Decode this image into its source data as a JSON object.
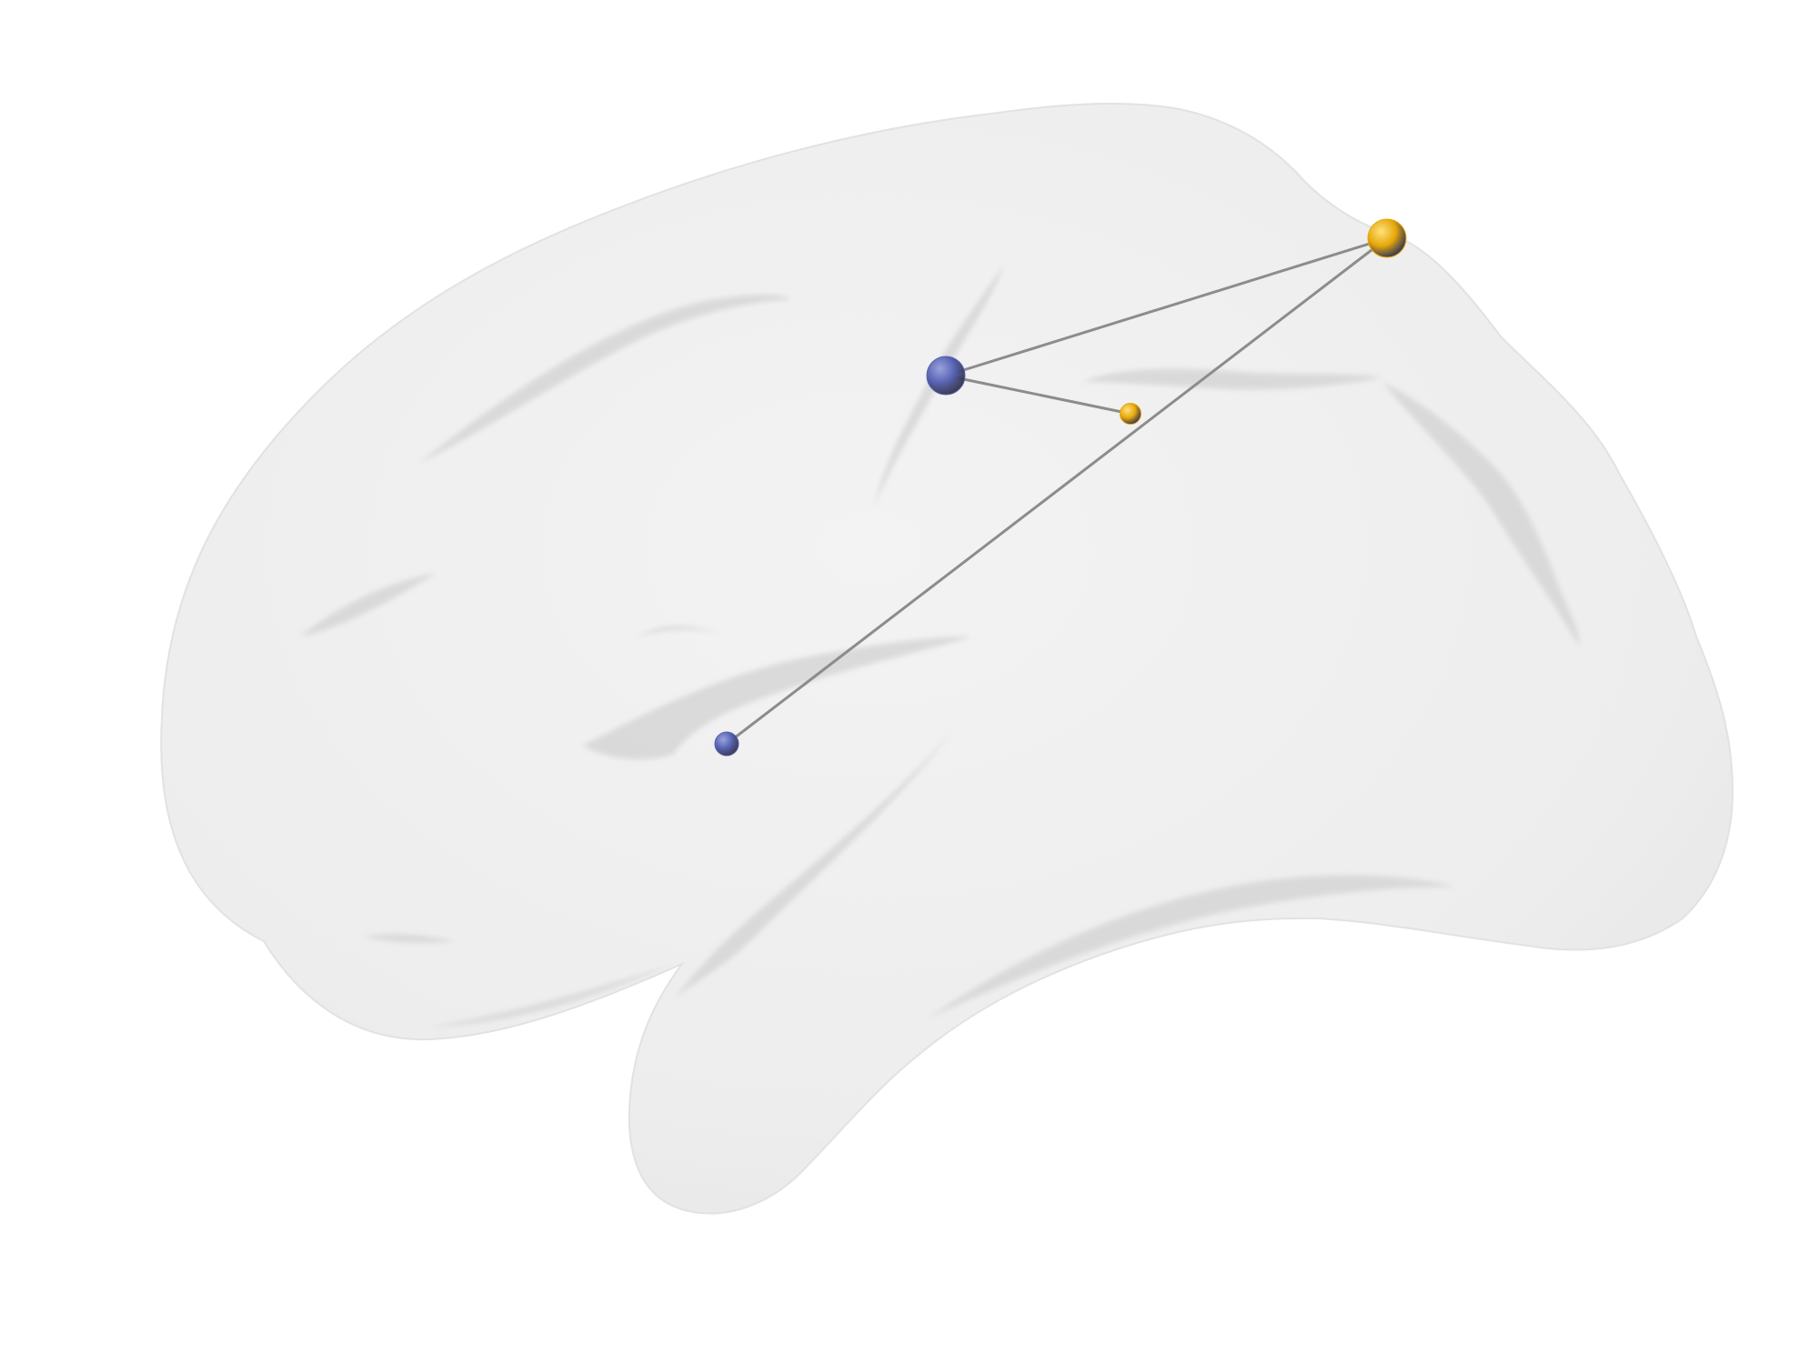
{
  "figure": {
    "background": "#ffffff",
    "surface_fill": "#eeeeee",
    "sulcus_fill": "#d9d9d9",
    "edge_color": "#8c8c8c"
  },
  "legend": {
    "groups": [
      {
        "id": "blue",
        "color": "#5662b2",
        "highlight": "#9aa3dc"
      },
      {
        "id": "gold",
        "color": "#e6a70a",
        "highlight": "#ffe27a"
      }
    ]
  },
  "network": {
    "nodes": [
      {
        "id": "n1",
        "group": "blue",
        "relative_size": 1.0
      },
      {
        "id": "n2",
        "group": "gold",
        "relative_size": 0.55
      },
      {
        "id": "n3",
        "group": "gold",
        "relative_size": 1.0
      },
      {
        "id": "n4",
        "group": "blue",
        "relative_size": 0.62
      }
    ],
    "edges": [
      {
        "source": "n1",
        "target": "n3"
      },
      {
        "source": "n1",
        "target": "n2"
      },
      {
        "source": "n4",
        "target": "n3"
      }
    ]
  }
}
